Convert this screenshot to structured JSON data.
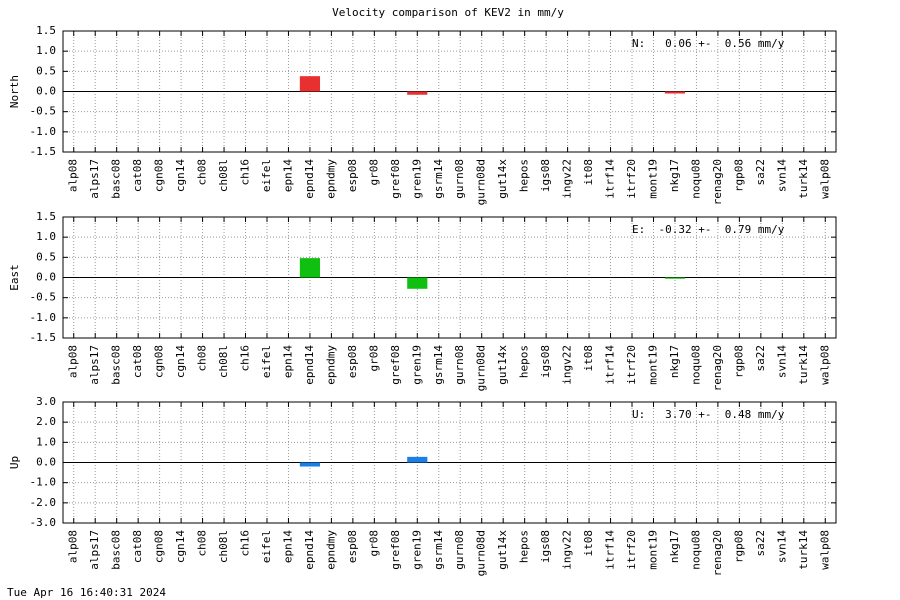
{
  "title": "Velocity comparison of KEV2 in mm/y",
  "footer": "Tue Apr 16 16:40:31 2024",
  "chart_data": [
    {
      "type": "bar",
      "ylabel": "North",
      "annotation": "N:   0.06 +-  0.56 mm/y",
      "color": "#e83030",
      "categories": [
        "alp08",
        "alps17",
        "basc08",
        "cat08",
        "cgn08",
        "cgn14",
        "ch08",
        "ch08l",
        "ch16",
        "eifel",
        "epn14",
        "epnd14",
        "epndmy",
        "esp08",
        "gr08",
        "gref08",
        "gren19",
        "gsrm14",
        "gurn08",
        "gurn08d",
        "gut14x",
        "hepos",
        "igs08",
        "ingv22",
        "it08",
        "itrf14",
        "itrf20",
        "mont19",
        "nkg17",
        "noqu08",
        "renag20",
        "rgp08",
        "sa22",
        "svn14",
        "turk14",
        "walp08"
      ],
      "values": [
        null,
        null,
        null,
        null,
        null,
        null,
        null,
        null,
        null,
        null,
        null,
        0.38,
        null,
        null,
        null,
        null,
        -0.08,
        null,
        null,
        null,
        null,
        null,
        null,
        null,
        null,
        null,
        null,
        null,
        -0.05,
        null,
        null,
        null,
        null,
        null,
        null,
        null
      ],
      "ylim": [
        -1.5,
        1.5
      ],
      "yticks": [
        {
          "value": -1.5,
          "label": "-1.5"
        },
        {
          "value": -1.0,
          "label": "-1.0"
        },
        -0.5,
        {
          "value": 0,
          "label": "0.0"
        },
        0.5,
        {
          "value": 1.0,
          "label": "1.0"
        },
        1.5
      ],
      "grid": true
    },
    {
      "type": "bar",
      "ylabel": "East",
      "annotation": "E:  -0.32 +-  0.79 mm/y",
      "color": "#10c010",
      "categories": [
        "alp08",
        "alps17",
        "basc08",
        "cat08",
        "cgn08",
        "cgn14",
        "ch08",
        "ch08l",
        "ch16",
        "eifel",
        "epn14",
        "epnd14",
        "epndmy",
        "esp08",
        "gr08",
        "gref08",
        "gren19",
        "gsrm14",
        "gurn08",
        "gurn08d",
        "gut14x",
        "hepos",
        "igs08",
        "ingv22",
        "it08",
        "itrf14",
        "itrf20",
        "mont19",
        "nkg17",
        "noqu08",
        "renag20",
        "rgp08",
        "sa22",
        "svn14",
        "turk14",
        "walp08"
      ],
      "values": [
        null,
        null,
        null,
        null,
        null,
        null,
        null,
        null,
        null,
        null,
        null,
        0.48,
        null,
        null,
        null,
        null,
        -0.28,
        null,
        null,
        null,
        null,
        null,
        null,
        null,
        null,
        null,
        null,
        null,
        -0.03,
        null,
        null,
        null,
        null,
        null,
        null,
        null
      ],
      "ylim": [
        -1.5,
        1.5
      ],
      "yticks": [
        {
          "value": -1.5,
          "label": "-1.5"
        },
        {
          "value": -1.0,
          "label": "-1.0"
        },
        -0.5,
        {
          "value": 0,
          "label": "0.0"
        },
        0.5,
        {
          "value": 1.0,
          "label": "1.0"
        },
        1.5
      ],
      "grid": true
    },
    {
      "type": "bar",
      "ylabel": "Up",
      "annotation": "U:   3.70 +-  0.48 mm/y",
      "color": "#1a80e8",
      "categories": [
        "alp08",
        "alps17",
        "basc08",
        "cat08",
        "cgn08",
        "cgn14",
        "ch08",
        "ch08l",
        "ch16",
        "eifel",
        "epn14",
        "epnd14",
        "epndmy",
        "esp08",
        "gr08",
        "gref08",
        "gren19",
        "gsrm14",
        "gurn08",
        "gurn08d",
        "gut14x",
        "hepos",
        "igs08",
        "ingv22",
        "it08",
        "itrf14",
        "itrf20",
        "mont19",
        "nkg17",
        "noqu08",
        "renag20",
        "rgp08",
        "sa22",
        "svn14",
        "turk14",
        "walp08"
      ],
      "values": [
        null,
        null,
        null,
        null,
        null,
        null,
        null,
        null,
        null,
        null,
        null,
        -0.2,
        null,
        null,
        null,
        null,
        0.28,
        null,
        null,
        null,
        null,
        null,
        null,
        null,
        null,
        null,
        null,
        null,
        null,
        null,
        null,
        null,
        null,
        null,
        null,
        null
      ],
      "ylim": [
        -3.0,
        3.0
      ],
      "yticks": [
        {
          "value": -3.0,
          "label": "-3.0"
        },
        {
          "value": -2.0,
          "label": "-2.0"
        },
        {
          "value": -1.0,
          "label": "-1.0"
        },
        {
          "value": 0,
          "label": "0.0"
        },
        {
          "value": 1.0,
          "label": "1.0"
        },
        {
          "value": 2.0,
          "label": "2.0"
        },
        {
          "value": 3.0,
          "label": "3.0"
        }
      ],
      "grid": true
    }
  ]
}
